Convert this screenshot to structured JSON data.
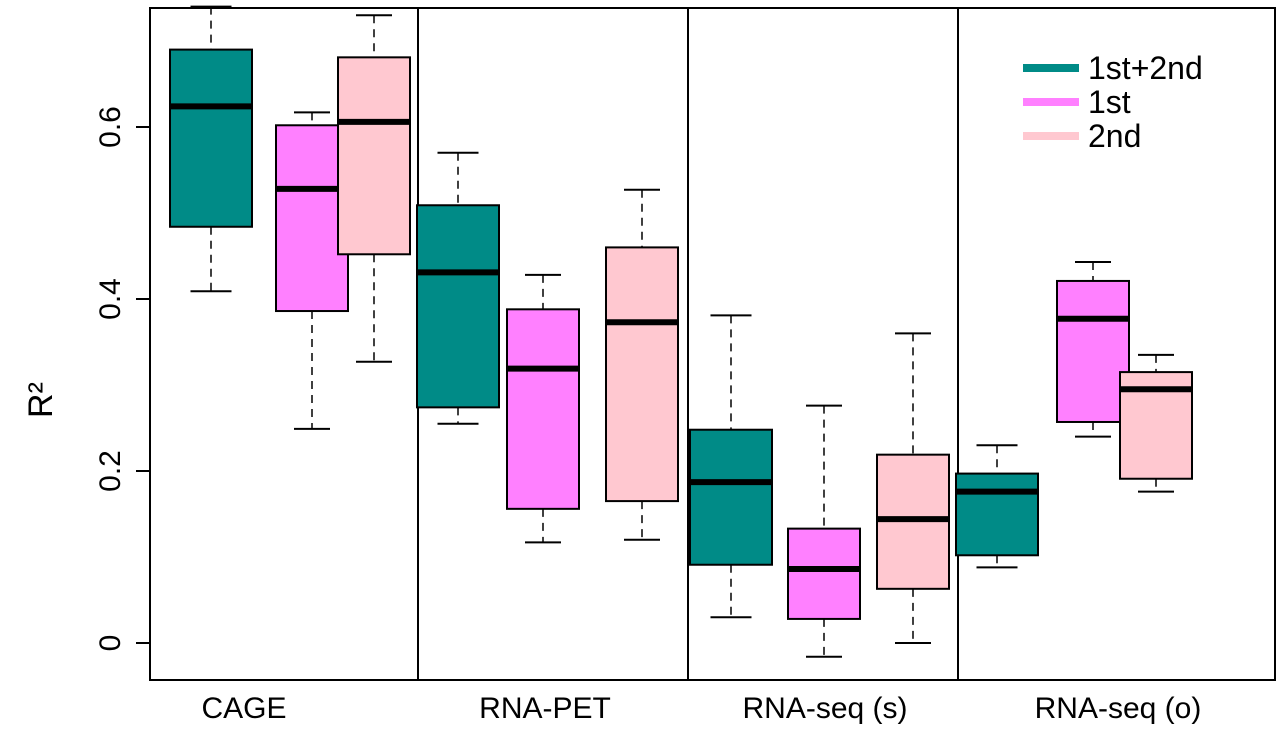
{
  "chart_data": {
    "type": "boxplot",
    "ylabel": "R²",
    "ylim": [
      -0.045,
      0.735
    ],
    "yticks": [
      "0",
      "0.2",
      "0.4",
      "0.6"
    ],
    "ytick_values": [
      0,
      0.2,
      0.4,
      0.6
    ],
    "categories": [
      "CAGE",
      "RNA-PET",
      "RNA-seq (s)",
      "RNA-seq (o)"
    ],
    "legend_position": "top-right",
    "series": [
      {
        "name": "1st+2nd",
        "color": "#008B87",
        "boxes": [
          {
            "min": 0.409,
            "q1": 0.484,
            "median": 0.624,
            "q3": 0.69,
            "max": 0.74
          },
          {
            "min": 0.255,
            "q1": 0.274,
            "median": 0.431,
            "q3": 0.509,
            "max": 0.57
          },
          {
            "min": 0.03,
            "q1": 0.091,
            "median": 0.187,
            "q3": 0.248,
            "max": 0.381
          },
          {
            "min": 0.088,
            "q1": 0.102,
            "median": 0.176,
            "q3": 0.197,
            "max": 0.23
          }
        ]
      },
      {
        "name": "1st",
        "color": "#FF80FF",
        "boxes": [
          {
            "min": 0.249,
            "q1": 0.386,
            "median": 0.528,
            "q3": 0.602,
            "max": 0.617
          },
          {
            "min": 0.117,
            "q1": 0.156,
            "median": 0.319,
            "q3": 0.388,
            "max": 0.428
          },
          {
            "min": -0.016,
            "q1": 0.028,
            "median": 0.086,
            "q3": 0.133,
            "max": 0.276
          },
          {
            "min": 0.24,
            "q1": 0.257,
            "median": 0.377,
            "q3": 0.421,
            "max": 0.443
          }
        ]
      },
      {
        "name": "2nd",
        "color": "#FFC8D0",
        "boxes": [
          {
            "min": 0.327,
            "q1": 0.452,
            "median": 0.606,
            "q3": 0.681,
            "max": 0.73
          },
          {
            "min": 0.12,
            "q1": 0.165,
            "median": 0.373,
            "q3": 0.46,
            "max": 0.527
          },
          {
            "min": 0.0,
            "q1": 0.063,
            "median": 0.144,
            "q3": 0.219,
            "max": 0.36
          },
          {
            "min": 0.176,
            "q1": 0.191,
            "median": 0.295,
            "q3": 0.315,
            "max": 0.335
          }
        ]
      }
    ]
  }
}
